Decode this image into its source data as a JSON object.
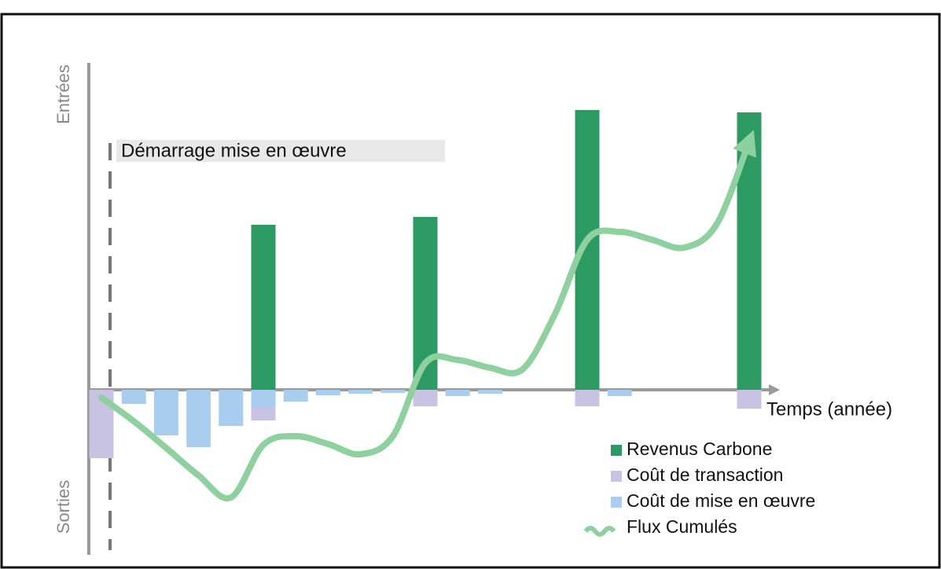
{
  "chart_data": {
    "type": "bar",
    "y_top_label": "Entrées",
    "y_bottom_label": "Sorties",
    "x_label": "Temps (année)",
    "annotation": "Démarrage mise en œuvre",
    "categories": [
      null,
      null,
      null,
      null,
      null,
      null,
      null,
      null,
      null,
      null,
      null,
      null,
      null,
      null,
      null,
      null,
      null,
      null,
      null,
      null,
      null
    ],
    "ylim": [
      -210,
      420
    ],
    "series": [
      {
        "name": "Revenus Carbone",
        "color": "#2e9a63",
        "type": "bar",
        "values": [
          0,
          0,
          0,
          0,
          0,
          210,
          0,
          0,
          0,
          0,
          220,
          0,
          0,
          0,
          0,
          356,
          0,
          0,
          0,
          0,
          353
        ]
      },
      {
        "name": "Coût de transaction",
        "color": "#c9c3e3",
        "type": "bar",
        "values": [
          -87,
          0,
          0,
          0,
          0,
          -18,
          0,
          0,
          0,
          0,
          -21,
          0,
          0,
          0,
          0,
          -21,
          0,
          0,
          0,
          0,
          -24
        ]
      },
      {
        "name": "Coût de mise en œuvre",
        "color": "#a8cdee",
        "type": "bar",
        "values": [
          0,
          -18,
          -58,
          -73,
          -46,
          -21,
          -15,
          -7,
          -5,
          -4,
          0,
          -8,
          -5,
          0,
          0,
          0,
          -8,
          0,
          0,
          0,
          0
        ]
      },
      {
        "name": "Flux Cumulés",
        "color": "#8fd19e",
        "type": "line",
        "values": [
          -10,
          -40,
          -74,
          -109,
          -137,
          -70,
          -59,
          -69,
          -82,
          -59,
          34,
          38,
          28,
          26,
          96,
          191,
          201,
          191,
          181,
          211,
          316
        ]
      }
    ]
  }
}
